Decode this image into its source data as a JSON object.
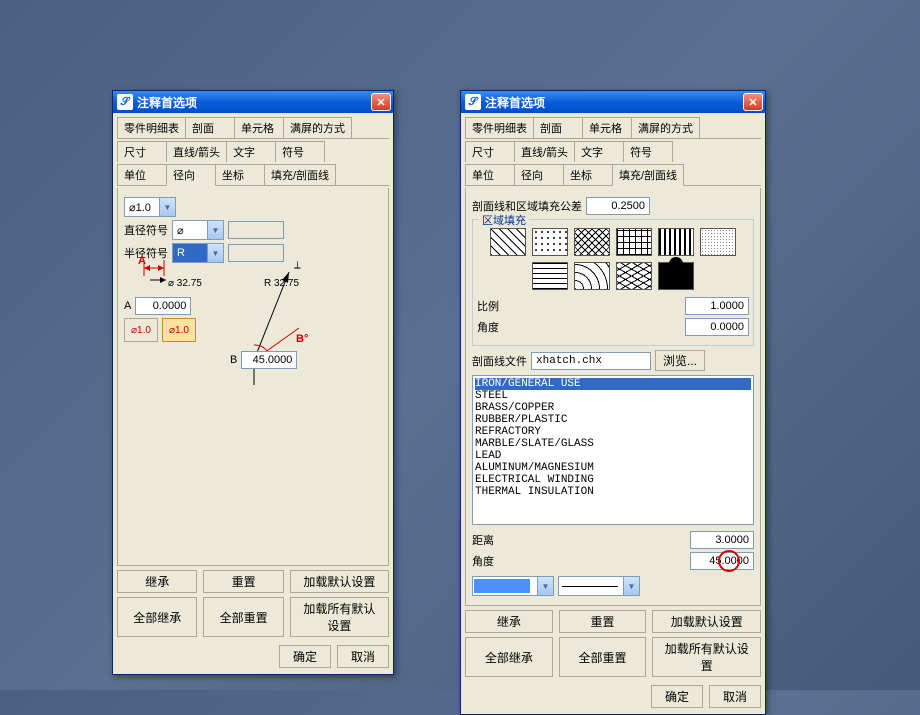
{
  "dialog": {
    "title": "注释首选项",
    "tabs_row1": [
      "零件明细表",
      "剖面",
      "单元格",
      "满屏的方式"
    ],
    "tabs_row2": [
      "尺寸",
      "直线/箭头",
      "文字",
      "符号"
    ],
    "tabs_row3": [
      "单位",
      "径向",
      "坐标",
      "填充/剖面线"
    ]
  },
  "left": {
    "active_tab": "径向",
    "phi_combo": "⌀1.0",
    "diameter_symbol_label": "直径符号",
    "diameter_symbol_value": "⌀",
    "radius_symbol_label": "半径符号",
    "radius_symbol_value": "R",
    "a_arrow_label": "A",
    "a_dim_text": "⌀ 32.75",
    "a_label": "A",
    "a_value": "0.0000",
    "r_text": "R 32.75",
    "b_deg": "B°",
    "b_label": "B",
    "b_value": "45.0000",
    "toggle1": "⌀1.0",
    "toggle2": "⌀1.0"
  },
  "right": {
    "active_tab": "填充/剖面线",
    "tol_label": "剖面线和区域填充公差",
    "tol_value": "0.2500",
    "group_label": "区域填充",
    "ratio_label": "比例",
    "ratio_value": "1.0000",
    "angle_label": "角度",
    "angle_value": "0.0000",
    "hatchfile_label": "剖面线文件",
    "hatchfile_value": "xhatch.chx",
    "browse": "浏览...",
    "materials": [
      "IRON/GENERAL USE",
      "STEEL",
      "BRASS/COPPER",
      "RUBBER/PLASTIC",
      "REFRACTORY",
      "MARBLE/SLATE/GLASS",
      "LEAD",
      "ALUMINUM/MAGNESIUM",
      "ELECTRICAL WINDING",
      "THERMAL INSULATION"
    ],
    "distance_label": "距离",
    "distance_value": "3.0000",
    "angle2_label": "角度",
    "angle2_value": "45.0000",
    "color_swatch": "#4a90ff",
    "hatch_patterns": 10
  },
  "buttons": {
    "inherit": "继承",
    "reset": "重置",
    "load_default": "加载默认设置",
    "inherit_all": "全部继承",
    "reset_all": "全部重置",
    "load_all_default": "加载所有默认设置",
    "ok": "确定",
    "cancel": "取消"
  },
  "colors": {
    "selected_material_bg": "#316ac5",
    "red_accent": "#cc0000"
  }
}
